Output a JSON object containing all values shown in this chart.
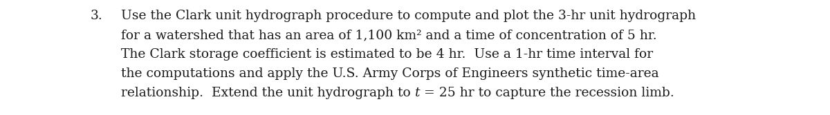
{
  "line1_num": "3.",
  "line1_text": "Use the Clark unit hydrograph procedure to compute and plot the 3-hr unit hydrograph",
  "line2": "for a watershed that has an area of 1,100 km² and a time of concentration of 5 hr.",
  "line3": "The Clark storage coefficient is estimated to be 4 hr.  Use a 1-hr time interval for",
  "line4": "the computations and apply the U.S. Army Corps of Engineers synthetic time-area",
  "line5_pre": "relationship.  Extend the unit hydrograph to ",
  "line5_t": "t",
  "line5_post": " = 25 hr to capture the recession limb.",
  "font_size": 13.5,
  "text_color": "#1a1a1a",
  "background_color": "#ffffff"
}
